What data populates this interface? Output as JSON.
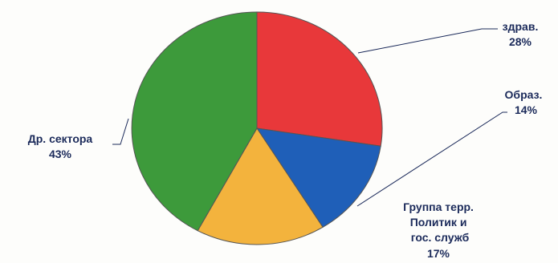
{
  "chart_data": {
    "type": "pie",
    "title": "",
    "slices": [
      {
        "label": "здрав.",
        "value_label": "28%",
        "value": 28,
        "color": "#e8383a"
      },
      {
        "label": "Образ.",
        "value_label": "14%",
        "value": 14,
        "color": "#1f5fb8"
      },
      {
        "label": "Группа терр.\nПолитик и\nгос. служб",
        "value_label": "17%",
        "value": 17,
        "color": "#f3b33d"
      },
      {
        "label": "Др. сектора",
        "value_label": "43%",
        "value": 43,
        "color": "#3d9a3b"
      }
    ]
  }
}
